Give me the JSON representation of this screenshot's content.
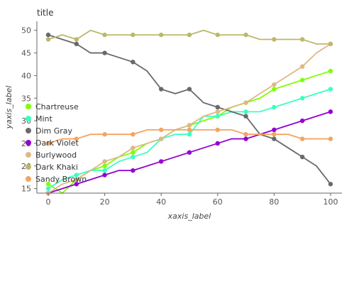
{
  "chart_data": {
    "type": "line",
    "title": "title",
    "xlabel": "xaxis_label",
    "ylabel": "yaxis_label",
    "xlim": [
      0,
      100
    ],
    "ylim": [
      14,
      52
    ],
    "xticks": [
      0,
      20,
      40,
      60,
      80,
      100
    ],
    "yticks": [
      15,
      20,
      25,
      30,
      35,
      40,
      45,
      50
    ],
    "grid": false,
    "legend_position": "left",
    "x": [
      0,
      5,
      10,
      15,
      20,
      25,
      30,
      35,
      40,
      45,
      50,
      55,
      60,
      65,
      70,
      75,
      80,
      85,
      90,
      95,
      100
    ],
    "series": [
      {
        "name": "Chartreuse",
        "color": "#7fff00",
        "values": [
          16,
          14,
          17,
          19,
          20,
          22,
          23,
          25,
          26,
          28,
          29,
          30,
          31,
          33,
          34,
          35,
          37,
          38,
          39,
          40,
          41
        ]
      },
      {
        "name": "Mint",
        "color": "#3bffc0",
        "values": [
          15,
          17,
          18,
          19,
          19,
          21,
          22,
          23,
          26,
          27,
          27,
          31,
          31,
          32,
          32,
          32,
          33,
          34,
          35,
          36,
          37
        ]
      },
      {
        "name": "Dim Gray",
        "color": "#696969",
        "values": [
          49,
          48,
          47,
          45,
          45,
          44,
          43,
          41,
          37,
          36,
          37,
          34,
          33,
          32,
          31,
          27,
          26,
          24,
          22,
          20,
          16
        ]
      },
      {
        "name": "Dark Violet",
        "color": "#9400d3",
        "values": [
          14,
          15,
          16,
          17,
          18,
          19,
          19,
          20,
          21,
          22,
          23,
          24,
          25,
          26,
          26,
          27,
          28,
          29,
          30,
          31,
          32
        ]
      },
      {
        "name": "Burlywood",
        "color": "#deb887",
        "values": [
          14,
          16,
          17,
          19,
          21,
          22,
          24,
          25,
          26,
          28,
          29,
          31,
          32,
          33,
          34,
          36,
          38,
          40,
          42,
          45,
          47
        ]
      },
      {
        "name": "Dark Khaki",
        "color": "#bdb76b",
        "values": [
          48,
          49,
          48,
          50,
          49,
          49,
          49,
          49,
          49,
          49,
          49,
          50,
          49,
          49,
          49,
          48,
          48,
          48,
          48,
          47,
          47
        ]
      },
      {
        "name": "Sandy Brown",
        "color": "#f4a460",
        "values": [
          25,
          26,
          26,
          27,
          27,
          27,
          27,
          28,
          28,
          28,
          28,
          28,
          28,
          28,
          27,
          27,
          27,
          27,
          26,
          26,
          26
        ]
      }
    ]
  }
}
